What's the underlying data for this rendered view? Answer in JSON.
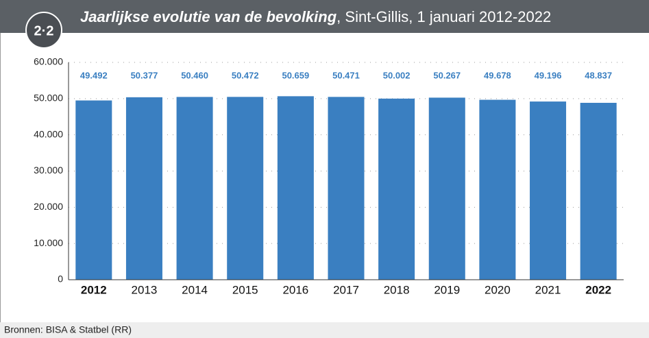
{
  "chart_data": {
    "type": "bar",
    "badge": "2·2",
    "title": "Jaarlijkse evolutie van de bevolking",
    "subtitle": ", Sint-Gillis, 1 januari 2012-2022",
    "source": "Bronnen: BISA & Statbel (RR)",
    "categories": [
      "2012",
      "2013",
      "2014",
      "2015",
      "2016",
      "2017",
      "2018",
      "2019",
      "2020",
      "2021",
      "2022"
    ],
    "bold_category_indices": [
      0,
      10
    ],
    "values": [
      49492,
      50377,
      50460,
      50472,
      50659,
      50471,
      50002,
      50267,
      49678,
      49196,
      48837
    ],
    "value_labels": [
      "49.492",
      "50.377",
      "50.460",
      "50.472",
      "50.659",
      "50.471",
      "50.002",
      "50.267",
      "49.678",
      "49.196",
      "48.837"
    ],
    "color": "#3a7fc1",
    "ylim": [
      0,
      60000
    ],
    "yticks": [
      0,
      {
        "value": 10000,
        "label": "10.000"
      },
      {
        "value": 20000,
        "label": "20.000"
      },
      {
        "value": 30000,
        "label": "30.000"
      },
      {
        "value": 40000,
        "label": "40.000"
      },
      {
        "value": 50000,
        "label": "50.000"
      },
      {
        "value": 60000,
        "label": "60.000"
      }
    ],
    "grid": true
  }
}
